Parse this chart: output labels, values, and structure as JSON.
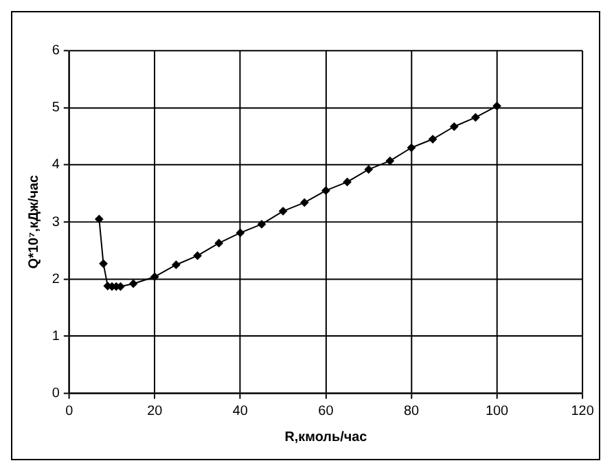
{
  "chart_data": {
    "type": "line",
    "xlabel": "R,кмоль/час",
    "ylabel": "Q*10⁷,кДж/час",
    "x": [
      7,
      8,
      9,
      10,
      11,
      12,
      15,
      20,
      25,
      30,
      35,
      40,
      45,
      50,
      55,
      60,
      65,
      70,
      75,
      80,
      85,
      90,
      95,
      100
    ],
    "series": [
      {
        "color": "#000000",
        "values": [
          3.05,
          2.27,
          1.88,
          1.87,
          1.87,
          1.87,
          1.92,
          2.04,
          2.25,
          2.41,
          2.63,
          2.81,
          2.96,
          3.19,
          3.34,
          3.55,
          3.7,
          3.92,
          4.07,
          4.3,
          4.45,
          4.67,
          4.83,
          5.03
        ]
      }
    ],
    "xlim": [
      0,
      120
    ],
    "xticks": [
      0,
      20,
      40,
      60,
      80,
      100,
      120
    ],
    "ylim": [
      0,
      6
    ],
    "yticks": [
      0,
      1,
      2,
      3,
      4,
      5,
      6
    ],
    "grid": true,
    "legend": false,
    "marker": "diamond",
    "line_style": "solid"
  }
}
